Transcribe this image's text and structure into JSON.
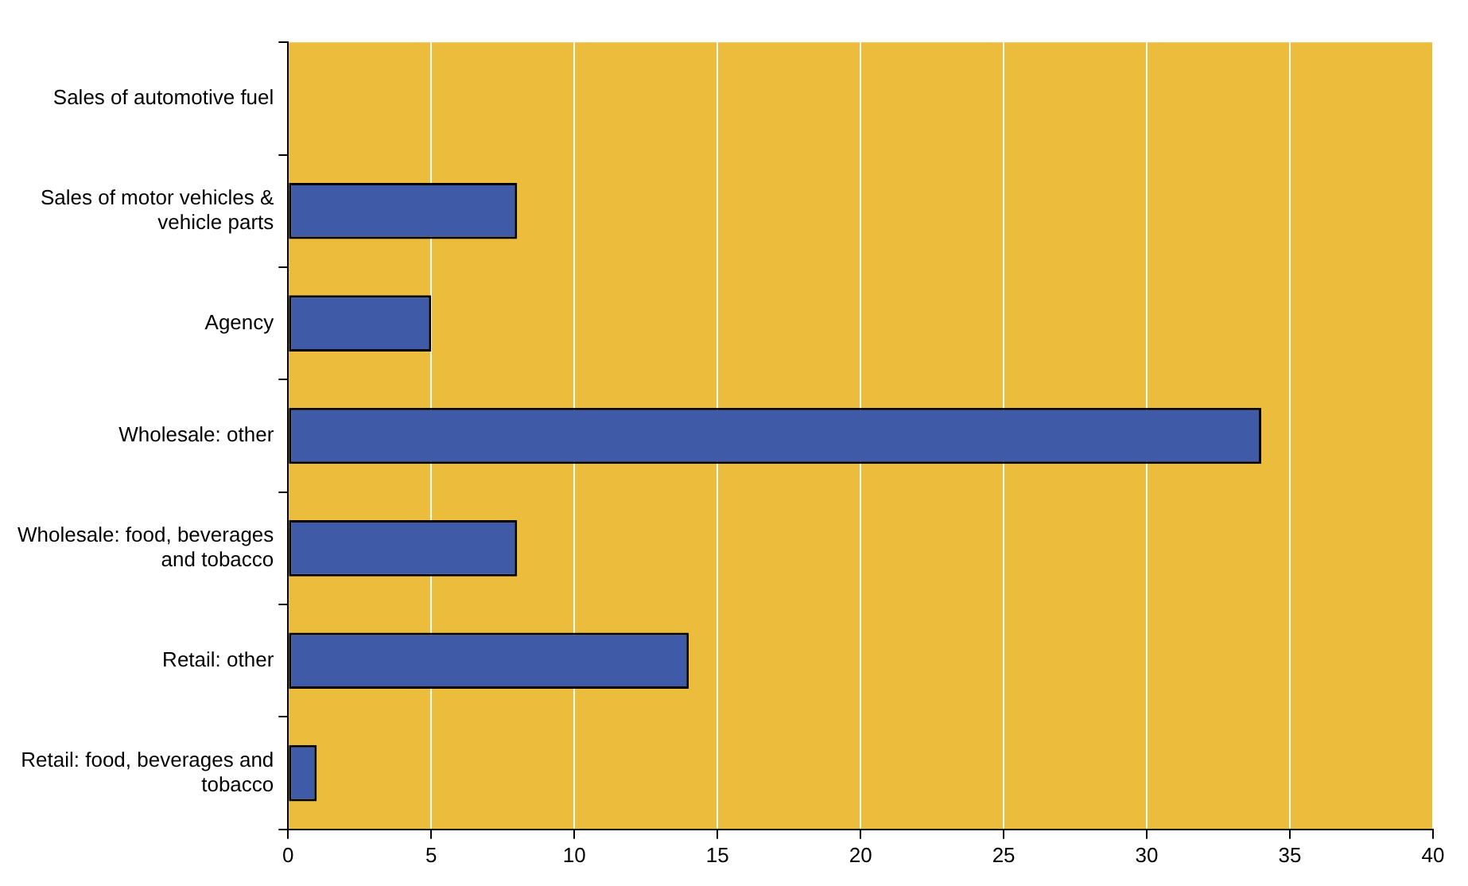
{
  "chart_data": {
    "type": "bar",
    "orientation": "horizontal",
    "categories": [
      "Sales of automotive fuel",
      "Sales of motor vehicles & vehicle parts",
      "Agency",
      "Wholesale: other",
      "Wholesale: food, beverages and tobacco",
      "Retail: other",
      "Retail: food, beverages and tobacco"
    ],
    "values": [
      0,
      8,
      5,
      34,
      8,
      14,
      1
    ],
    "color": "#3f5ba8",
    "xlim": [
      0,
      40
    ],
    "xticks": [
      0,
      5,
      10,
      15,
      20,
      25,
      30,
      35,
      40
    ],
    "grid": "x",
    "legend": false
  }
}
